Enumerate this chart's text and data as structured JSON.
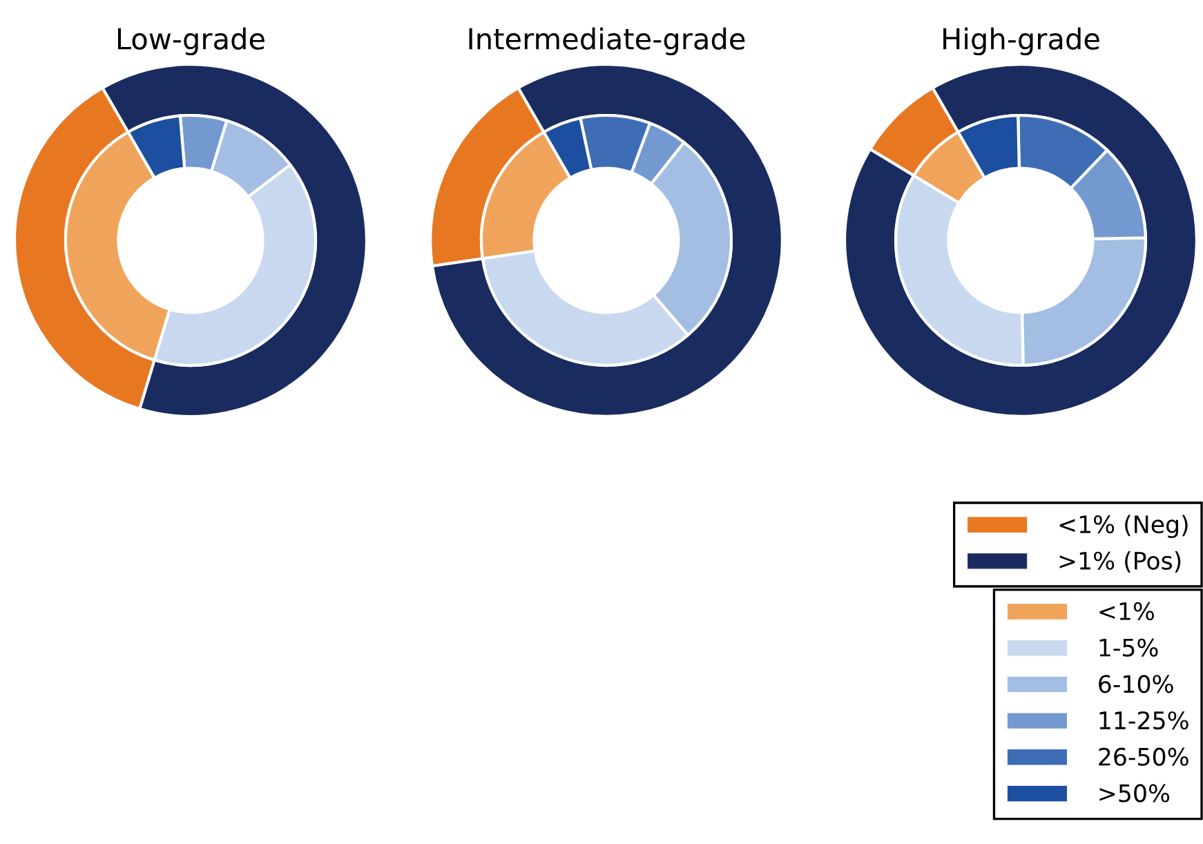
{
  "chart_data": [
    {
      "type": "donut",
      "title": "Low-grade",
      "legend": "bottom right",
      "categories": [
        "<1% (Neg)",
        ">1% (Pos)",
        "<1%",
        "1-5%",
        "6-10%",
        "11-25%",
        "26-50%",
        ">50%"
      ],
      "colors": [
        "#e87722",
        "#1a2b5f",
        "#f0a35a",
        "#c8d8ee",
        "#a3bde3",
        "#7399d0",
        "#3f6db5",
        "#1c4fa0"
      ],
      "series": [
        {
          "values": [
            37,
            63,
            null,
            null,
            null,
            null,
            null,
            null
          ]
        },
        {
          "values": [
            null,
            null,
            37,
            40,
            10,
            6,
            0,
            7
          ]
        }
      ]
    },
    {
      "type": "donut",
      "title": "Intermediate-grade",
      "categories": [
        null,
        null,
        null,
        null,
        null,
        null,
        null,
        null
      ],
      "colors": [
        "#e87722",
        "#1a2b5f",
        "#f0a35a",
        "#c8d8ee",
        "#a3bde3",
        "#7399d0",
        "#3f6db5",
        "#1c4fa0"
      ],
      "series": [
        {
          "values": [
            19,
            81,
            null,
            null,
            null,
            null,
            null,
            null
          ]
        },
        {
          "values": [
            null,
            null,
            19,
            34,
            28,
            5,
            9,
            5
          ]
        }
      ]
    },
    {
      "type": "donut",
      "title": "High-grade",
      "categories": [
        null,
        null,
        null,
        null,
        null,
        null,
        null,
        null
      ],
      "colors": [
        "#e87722",
        "#1a2b5f",
        "#f0a35a",
        "#c8d8ee",
        "#a3bde3",
        "#7399d0",
        "#3f6db5",
        "#1c4fa0"
      ],
      "series": [
        {
          "values": [
            8,
            92,
            null,
            null,
            null,
            null,
            null,
            null
          ]
        },
        {
          "values": [
            null,
            null,
            8,
            34,
            25,
            12.5,
            12.5,
            8
          ]
        }
      ]
    }
  ]
}
